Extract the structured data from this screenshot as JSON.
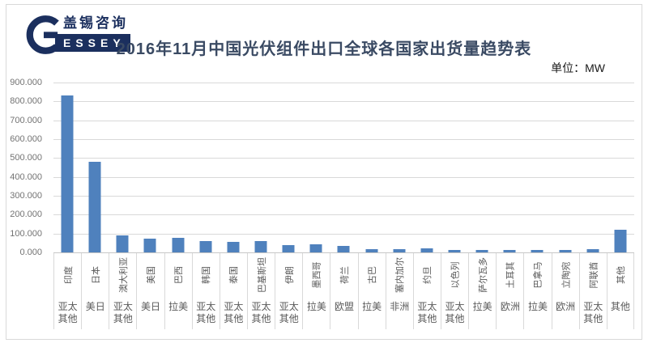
{
  "header": {
    "logo": {
      "brand_cn": "盖锡咨询",
      "brand_en": "ESSEY",
      "brand_color": "#1b2f5e"
    },
    "unit_label": "单位：MW"
  },
  "chart_data": {
    "type": "bar",
    "title": "2016年11月中国光伏组件出口全球各国家出货量趋势表",
    "unit": "MW",
    "xlabel": "",
    "ylabel": "",
    "ylim": [
      0,
      900
    ],
    "ytick_step": 100,
    "ytick_decimals": 3,
    "grid": true,
    "legend": false,
    "bar_color": "#4f81bd",
    "categories": [
      "印度",
      "日本",
      "澳大利亚",
      "美国",
      "巴西",
      "韩国",
      "泰国",
      "巴基斯坦",
      "伊朗",
      "墨西哥",
      "荷兰",
      "古巴",
      "塞内加尔",
      "约旦",
      "以色列",
      "萨尔瓦多",
      "土耳其",
      "巴拿马",
      "立陶宛",
      "阿联酋",
      "其他"
    ],
    "regions": [
      "亚太其他",
      "美日",
      "亚太其他",
      "美日",
      "拉美",
      "亚太其他",
      "亚太其他",
      "亚太其他",
      "亚太其他",
      "拉美",
      "欧盟",
      "拉美",
      "非洲",
      "亚太其他",
      "亚太其他",
      "拉美",
      "欧洲",
      "拉美",
      "欧洲",
      "亚太其他",
      "其他"
    ],
    "values": [
      830,
      480,
      90,
      75,
      77,
      62,
      57,
      59,
      40,
      43,
      33,
      18,
      19,
      20,
      13,
      14,
      12,
      14,
      12,
      16,
      118
    ]
  }
}
